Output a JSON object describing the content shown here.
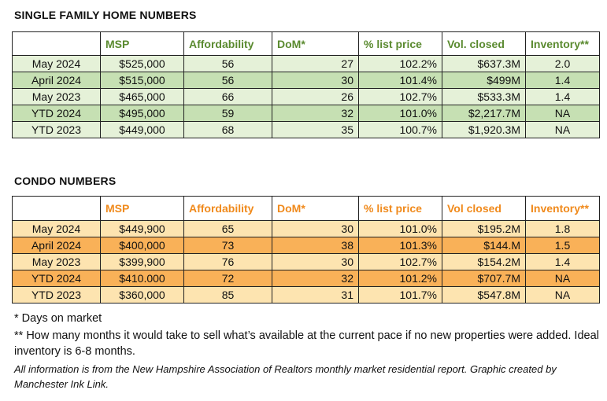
{
  "single_family": {
    "title": "SINGLE FAMILY HOME NUMBERS",
    "headers": [
      "",
      "MSP",
      "Affordability",
      "DoM*",
      "% list price",
      "Vol. closed",
      "Inventory**"
    ],
    "rows": [
      {
        "label": "May 2024",
        "msp": "$525,000",
        "affordability": "56",
        "dom": "27",
        "list_price": "102.2%",
        "vol_closed": "$637.3M",
        "inventory": "2.0"
      },
      {
        "label": "April 2024",
        "msp": "$515,000",
        "affordability": "56",
        "dom": "30",
        "list_price": "101.4%",
        "vol_closed": "$499M",
        "inventory": "1.4"
      },
      {
        "label": "May 2023",
        "msp": "$465,000",
        "affordability": "66",
        "dom": "26",
        "list_price": "102.7%",
        "vol_closed": "$533.3M",
        "inventory": "1.4"
      },
      {
        "label": "YTD 2024",
        "msp": "$495,000",
        "affordability": "59",
        "dom": "32",
        "list_price": "101.0%",
        "vol_closed": "$2,217.7M",
        "inventory": "NA"
      },
      {
        "label": "YTD 2023",
        "msp": "$449,000",
        "affordability": "68",
        "dom": "35",
        "list_price": "100.7%",
        "vol_closed": "$1,920.3M",
        "inventory": "NA"
      }
    ],
    "colors": {
      "header_text": "#5a8a2f",
      "row_light": "#e5f1d8",
      "row_dark": "#c6e0b3"
    }
  },
  "condo": {
    "title": "CONDO NUMBERS",
    "headers": [
      "",
      "MSP",
      "Affordability",
      "DoM*",
      "% list price",
      "Vol closed",
      "Inventory**"
    ],
    "rows": [
      {
        "label": "May 2024",
        "msp": "$449,900",
        "affordability": "65",
        "dom": "30",
        "list_price": "101.0%",
        "vol_closed": "$195.2M",
        "inventory": "1.8"
      },
      {
        "label": "April 2024",
        "msp": "$400,000",
        "affordability": "73",
        "dom": "38",
        "list_price": "101.3%",
        "vol_closed": "$144.M",
        "inventory": "1.5"
      },
      {
        "label": "May 2023",
        "msp": "$399,900",
        "affordability": "76",
        "dom": "30",
        "list_price": "102.7%",
        "vol_closed": "$154.2M",
        "inventory": "1.4"
      },
      {
        "label": "YTD 2024",
        "msp": "$410.000",
        "affordability": "72",
        "dom": "32",
        "list_price": "101.2%",
        "vol_closed": "$707.7M",
        "inventory": "NA"
      },
      {
        "label": "YTD 2023",
        "msp": "$360,000",
        "affordability": "85",
        "dom": "31",
        "list_price": "101.7%",
        "vol_closed": "$547.8M",
        "inventory": "NA"
      }
    ],
    "colors": {
      "header_text": "#f08a1c",
      "row_light": "#fde4b0",
      "row_dark": "#f9b158"
    }
  },
  "notes": {
    "dom": "* Days on market",
    "inventory": "** How many months it would take to sell what’s available at the current pace if no new properties were added. Ideal inventory is 6-8 months.",
    "source": "All information is from the New Hampshire Association of Realtors monthly market residential report. Graphic created by Manchester Ink Link."
  }
}
